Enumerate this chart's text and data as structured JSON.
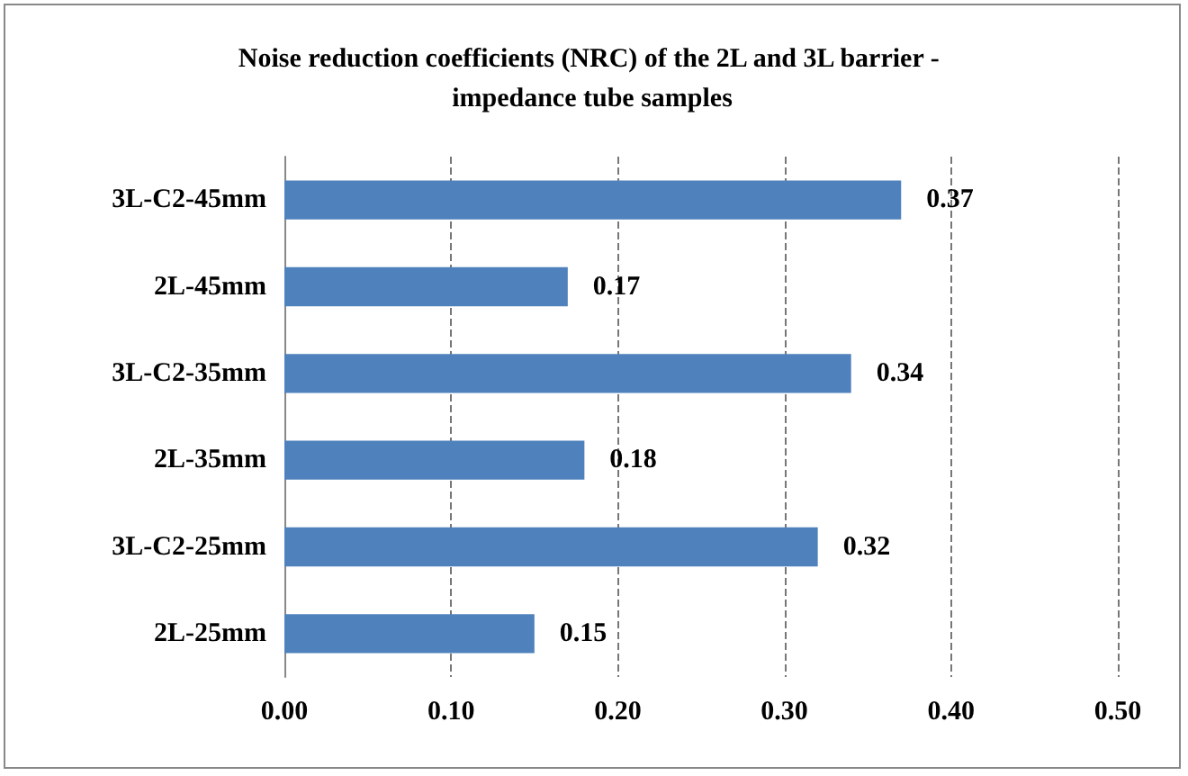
{
  "chart_data": {
    "type": "bar",
    "orientation": "horizontal",
    "title": "Noise reduction coefficients (NRC) of the 2L and 3L barrier - impedance tube samples",
    "categories": [
      "3L-C2-45mm",
      "2L-45mm",
      "3L-C2-35mm",
      "2L-35mm",
      "3L-C2-25mm",
      "2L-25mm"
    ],
    "values": [
      0.37,
      0.17,
      0.34,
      0.18,
      0.32,
      0.15
    ],
    "color": "#4f81bd",
    "xlim": [
      0,
      0.5
    ],
    "xticks": [
      {
        "value": 0,
        "label": "0.00"
      },
      {
        "value": 0.1,
        "label": "0.10"
      },
      {
        "value": 0.2,
        "label": "0.20"
      },
      {
        "value": 0.3,
        "label": "0.30"
      },
      {
        "value": 0.4,
        "label": "0.40"
      },
      {
        "value": 0.5,
        "label": "0.50"
      }
    ],
    "grid": "x",
    "data_labels": true
  }
}
